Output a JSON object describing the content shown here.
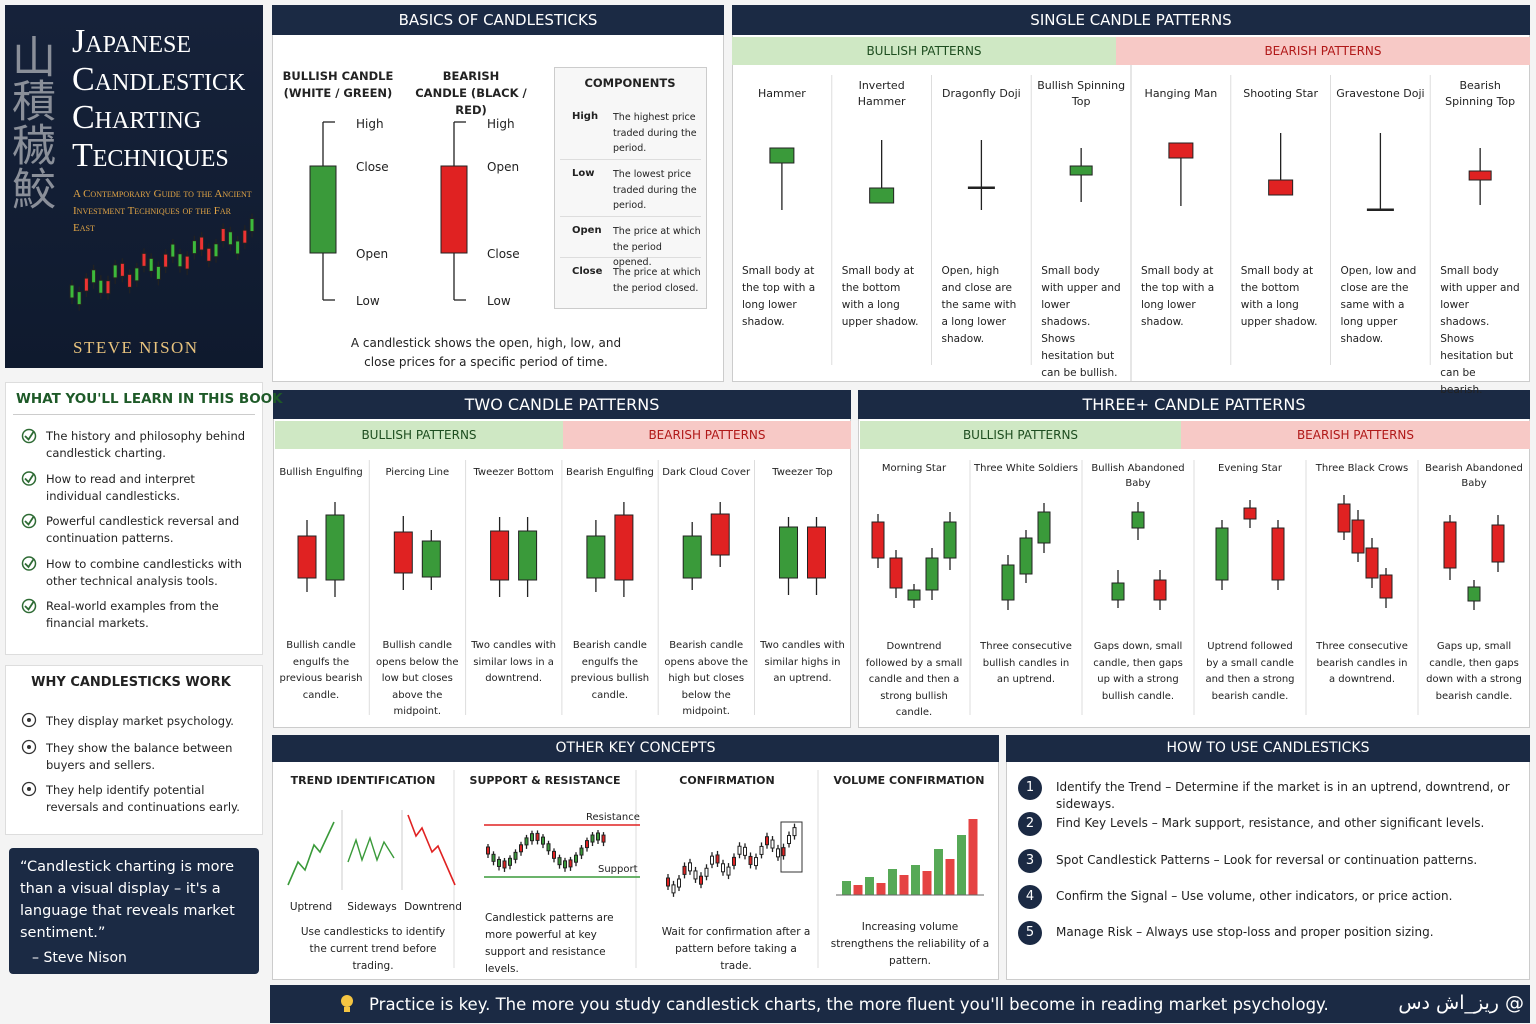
{
  "book": {
    "kanji": "山積穢鮫",
    "title_lines": [
      "Japanese",
      "Candlestick",
      "Charting",
      "Techniques"
    ],
    "subtitle": "A Contemporary Guide to the Ancient Investment Techniques of the Far East",
    "author": "Steve Nison"
  },
  "learn": {
    "title": "WHAT YOU'LL LEARN IN THIS BOOK",
    "items": [
      "The history and philosophy behind candlestick charting.",
      "How to read and interpret individual candlesticks.",
      "Powerful candlestick reversal and continuation patterns.",
      "How to combine candlesticks with other technical analysis tools.",
      "Real-world examples from the financial markets."
    ]
  },
  "why": {
    "title": "WHY CANDLESTICKS WORK",
    "items": [
      "They display market psychology.",
      "They show the balance between buyers and sellers.",
      "They help identify potential reversals and continuations early."
    ]
  },
  "quote": {
    "text": "“Candlestick charting is more than a visual display – it's a language that reveals market sentiment.”",
    "author": "– Steve Nison"
  },
  "basics": {
    "title": "BASICS OF CANDLESTICKS",
    "bullish": "BULLISH CANDLE (WHITE / GREEN)",
    "bearish": "BEARISH CANDLE (BLACK / RED)",
    "bull_labels": [
      "High",
      "Close",
      "Open",
      "Low"
    ],
    "bear_labels": [
      "High",
      "Open",
      "Close",
      "Low"
    ],
    "components": {
      "title": "COMPONENTS",
      "rows": [
        [
          "High",
          "The highest price traded during the period."
        ],
        [
          "Low",
          "The lowest price traded during the period."
        ],
        [
          "Open",
          "The price at which the period opened."
        ],
        [
          "Close",
          "The price at which the period closed."
        ]
      ]
    },
    "caption": "A candlestick shows the open, high, low, and close prices for a specific period of time."
  },
  "single": {
    "title": "SINGLE CANDLE PATTERNS",
    "bullish_label": "BULLISH PATTERNS",
    "bearish_label": "BEARISH PATTERNS",
    "patterns": [
      {
        "name": "Hammer",
        "desc": "Small body at the top with a long lower shadow."
      },
      {
        "name": "Inverted Hammer",
        "desc": "Small body at the bottom with a long upper shadow."
      },
      {
        "name": "Dragonfly Doji",
        "desc": "Open, high and close are the same with a long lower shadow."
      },
      {
        "name": "Bullish Spinning Top",
        "desc": "Small body with upper and lower shadows. Shows hesitation but can be bullish."
      },
      {
        "name": "Hanging Man",
        "desc": "Small body at the top with a long lower shadow."
      },
      {
        "name": "Shooting Star",
        "desc": "Small body at the bottom with a long upper shadow."
      },
      {
        "name": "Gravestone Doji",
        "desc": "Open, low and close are the same with a long upper shadow."
      },
      {
        "name": "Bearish Spinning Top",
        "desc": "Small body with upper and lower shadows. Shows hesitation but can be bearish."
      }
    ]
  },
  "two": {
    "title": "TWO CANDLE PATTERNS",
    "bullish_label": "BULLISH PATTERNS",
    "bearish_label": "BEARISH PATTERNS",
    "patterns": [
      {
        "name": "Bullish Engulfing",
        "desc": "Bullish candle engulfs the previous bearish candle."
      },
      {
        "name": "Piercing Line",
        "desc": "Bullish candle opens below the low but closes above the midpoint."
      },
      {
        "name": "Tweezer Bottom",
        "desc": "Two candles with similar lows in a downtrend."
      },
      {
        "name": "Bearish Engulfing",
        "desc": "Bearish candle engulfs the previous bullish candle."
      },
      {
        "name": "Dark Cloud Cover",
        "desc": "Bearish candle opens above the high but closes below the midpoint."
      },
      {
        "name": "Tweezer Top",
        "desc": "Two candles with similar highs in an uptrend."
      }
    ]
  },
  "three": {
    "title": "THREE+ CANDLE PATTERNS",
    "bullish_label": "BULLISH PATTERNS",
    "bearish_label": "BEARISH PATTERNS",
    "patterns": [
      {
        "name": "Morning Star",
        "desc": "Downtrend followed by a small candle and then a strong bullish candle."
      },
      {
        "name": "Three White Soldiers",
        "desc": "Three consecutive bullish candles in an uptrend."
      },
      {
        "name": "Bullish Abandoned Baby",
        "desc": "Gaps down, small candle, then gaps up with a strong bullish candle."
      },
      {
        "name": "Evening Star",
        "desc": "Uptrend followed by a small candle and then a strong bearish candle."
      },
      {
        "name": "Three Black Crows",
        "desc": "Three consecutive bearish candles in a downtrend."
      },
      {
        "name": "Bearish Abandoned Baby",
        "desc": "Gaps up, small candle, then gaps down with a strong bearish candle."
      }
    ]
  },
  "concepts": {
    "title": "OTHER KEY CONCEPTS",
    "items": [
      {
        "title": "TREND IDENTIFICATION",
        "desc": "Use candlesticks to identify the current trend before trading."
      },
      {
        "title": "SUPPORT & RESISTANCE",
        "desc": "Candlestick patterns are more powerful at key support and resistance levels."
      },
      {
        "title": "CONFIRMATION",
        "desc": "Wait for confirmation after a pattern before taking a trade."
      },
      {
        "title": "VOLUME CONFIRMATION",
        "desc": "Increasing volume strengthens the reliability of a pattern."
      }
    ],
    "trend_labels": [
      "Uptrend",
      "Sideways",
      "Downtrend"
    ],
    "sr_labels": [
      "Resistance",
      "Support"
    ]
  },
  "howto": {
    "title": "HOW TO USE CANDLESTICKS",
    "steps": [
      {
        "num": 1,
        "text": "Identify the Trend – Determine if the market is in an uptrend, downtrend, or sideways."
      },
      {
        "num": 2,
        "text": "Find Key Levels – Mark support, resistance, and other significant levels."
      },
      {
        "num": 3,
        "text": "Spot Candlestick Patterns – Look for reversal or continuation patterns."
      },
      {
        "num": 4,
        "text": "Confirm the Signal – Use volume, other indicators, or price action."
      },
      {
        "num": 5,
        "text": "Manage Risk – Always use stop-loss and proper position sizing."
      }
    ]
  },
  "footer": {
    "text": "Practice is key. The more you study candlestick charts, the more fluent you'll become in reading market psychology.",
    "watermark": "ریز_اش دس @"
  }
}
